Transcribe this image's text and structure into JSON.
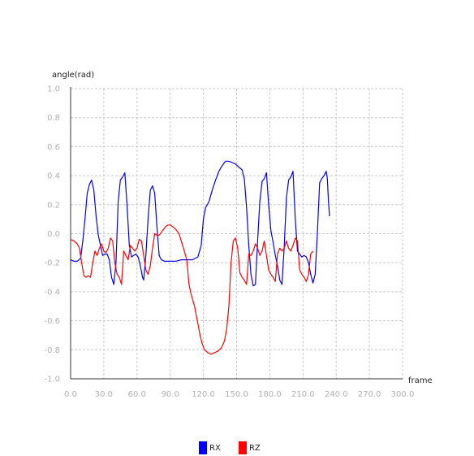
{
  "chart_data": {
    "type": "line",
    "xlabel": "frame",
    "ylabel": "angle(rad)",
    "xlim": [
      0,
      300
    ],
    "ylim": [
      -1.0,
      1.0
    ],
    "x_ticks": [
      "0.0",
      "30.0",
      "60.0",
      "90.0",
      "120.0",
      "150.0",
      "180.0",
      "210.0",
      "240.0",
      "270.0",
      "300.0"
    ],
    "y_ticks": [
      "1.0",
      "0.8",
      "0.6",
      "0.4",
      "0.2",
      "0.0",
      "-0.2",
      "-0.4",
      "-0.6",
      "-0.8",
      "-1.0"
    ],
    "grid": true,
    "legend_position": "bottom-center",
    "series": [
      {
        "name": "RX",
        "color": "#0000ff",
        "points": [
          [
            0,
            -0.18
          ],
          [
            3,
            -0.19
          ],
          [
            6,
            -0.19
          ],
          [
            9,
            -0.17
          ],
          [
            11,
            -0.05
          ],
          [
            13,
            0.1
          ],
          [
            15,
            0.28
          ],
          [
            17,
            0.34
          ],
          [
            19,
            0.37
          ],
          [
            21,
            0.3
          ],
          [
            23,
            0.12
          ],
          [
            25,
            -0.01
          ],
          [
            27,
            -0.08
          ],
          [
            29,
            -0.15
          ],
          [
            31,
            -0.14
          ],
          [
            33,
            -0.14
          ],
          [
            35,
            -0.18
          ],
          [
            37,
            -0.3
          ],
          [
            39,
            -0.35
          ],
          [
            41,
            -0.2
          ],
          [
            43,
            0.22
          ],
          [
            45,
            0.37
          ],
          [
            47,
            0.39
          ],
          [
            49,
            0.42
          ],
          [
            51,
            0.2
          ],
          [
            53,
            -0.08
          ],
          [
            55,
            -0.16
          ],
          [
            57,
            -0.15
          ],
          [
            59,
            -0.14
          ],
          [
            61,
            -0.16
          ],
          [
            63,
            -0.22
          ],
          [
            65,
            -0.3
          ],
          [
            66,
            -0.32
          ],
          [
            68,
            -0.15
          ],
          [
            70,
            0.1
          ],
          [
            72,
            0.3
          ],
          [
            74,
            0.33
          ],
          [
            76,
            0.28
          ],
          [
            78,
            0.05
          ],
          [
            80,
            -0.15
          ],
          [
            82,
            -0.18
          ],
          [
            85,
            -0.19
          ],
          [
            90,
            -0.19
          ],
          [
            95,
            -0.19
          ],
          [
            100,
            -0.18
          ],
          [
            105,
            -0.18
          ],
          [
            110,
            -0.18
          ],
          [
            115,
            -0.16
          ],
          [
            118,
            -0.08
          ],
          [
            120,
            0.1
          ],
          [
            122,
            0.18
          ],
          [
            125,
            0.22
          ],
          [
            128,
            0.3
          ],
          [
            131,
            0.37
          ],
          [
            134,
            0.43
          ],
          [
            137,
            0.47
          ],
          [
            140,
            0.5
          ],
          [
            143,
            0.5
          ],
          [
            146,
            0.49
          ],
          [
            149,
            0.48
          ],
          [
            152,
            0.46
          ],
          [
            155,
            0.44
          ],
          [
            157,
            0.38
          ],
          [
            159,
            0.18
          ],
          [
            161,
            -0.08
          ],
          [
            163,
            -0.28
          ],
          [
            165,
            -0.36
          ],
          [
            167,
            -0.35
          ],
          [
            169,
            -0.05
          ],
          [
            171,
            0.22
          ],
          [
            173,
            0.36
          ],
          [
            175,
            0.38
          ],
          [
            177,
            0.42
          ],
          [
            179,
            0.2
          ],
          [
            181,
            0.02
          ],
          [
            183,
            -0.06
          ],
          [
            185,
            -0.15
          ],
          [
            187,
            -0.22
          ],
          [
            189,
            -0.32
          ],
          [
            191,
            -0.35
          ],
          [
            193,
            -0.1
          ],
          [
            195,
            0.25
          ],
          [
            197,
            0.37
          ],
          [
            199,
            0.39
          ],
          [
            201,
            0.43
          ],
          [
            203,
            0.1
          ],
          [
            205,
            -0.12
          ],
          [
            207,
            -0.14
          ],
          [
            209,
            -0.16
          ],
          [
            211,
            -0.15
          ],
          [
            213,
            -0.16
          ],
          [
            215,
            -0.2
          ],
          [
            217,
            -0.28
          ],
          [
            219,
            -0.34
          ],
          [
            221,
            -0.28
          ],
          [
            223,
            0.0
          ],
          [
            225,
            0.35
          ],
          [
            227,
            0.38
          ],
          [
            229,
            0.4
          ],
          [
            231,
            0.43
          ],
          [
            232,
            0.38
          ],
          [
            233,
            0.22
          ],
          [
            234,
            0.12
          ]
        ]
      },
      {
        "name": "RZ",
        "color": "#ff0000",
        "points": [
          [
            0,
            -0.04
          ],
          [
            3,
            -0.05
          ],
          [
            6,
            -0.07
          ],
          [
            8,
            -0.1
          ],
          [
            10,
            -0.2
          ],
          [
            12,
            -0.29
          ],
          [
            14,
            -0.3
          ],
          [
            16,
            -0.29
          ],
          [
            18,
            -0.3
          ],
          [
            20,
            -0.2
          ],
          [
            22,
            -0.12
          ],
          [
            24,
            -0.15
          ],
          [
            26,
            -0.1
          ],
          [
            28,
            -0.07
          ],
          [
            30,
            -0.12
          ],
          [
            32,
            -0.13
          ],
          [
            34,
            -0.1
          ],
          [
            36,
            -0.03
          ],
          [
            38,
            -0.05
          ],
          [
            40,
            -0.2
          ],
          [
            42,
            -0.28
          ],
          [
            44,
            -0.3
          ],
          [
            46,
            -0.35
          ],
          [
            48,
            -0.12
          ],
          [
            50,
            -0.15
          ],
          [
            52,
            -0.18
          ],
          [
            54,
            -0.08
          ],
          [
            56,
            -0.1
          ],
          [
            58,
            -0.12
          ],
          [
            60,
            -0.1
          ],
          [
            62,
            -0.04
          ],
          [
            64,
            -0.05
          ],
          [
            66,
            -0.15
          ],
          [
            68,
            -0.25
          ],
          [
            70,
            -0.28
          ],
          [
            72,
            -0.22
          ],
          [
            74,
            -0.1
          ],
          [
            76,
            0.0
          ],
          [
            78,
            -0.01
          ],
          [
            80,
            -0.01
          ],
          [
            82,
            0.01
          ],
          [
            84,
            0.03
          ],
          [
            86,
            0.05
          ],
          [
            88,
            0.06
          ],
          [
            90,
            0.06
          ],
          [
            92,
            0.05
          ],
          [
            95,
            0.03
          ],
          [
            98,
            0.0
          ],
          [
            100,
            -0.05
          ],
          [
            102,
            -0.1
          ],
          [
            105,
            -0.18
          ],
          [
            107,
            -0.35
          ],
          [
            109,
            -0.42
          ],
          [
            112,
            -0.5
          ],
          [
            115,
            -0.62
          ],
          [
            117,
            -0.7
          ],
          [
            119,
            -0.76
          ],
          [
            121,
            -0.8
          ],
          [
            124,
            -0.82
          ],
          [
            127,
            -0.83
          ],
          [
            130,
            -0.82
          ],
          [
            133,
            -0.81
          ],
          [
            136,
            -0.79
          ],
          [
            139,
            -0.74
          ],
          [
            141,
            -0.66
          ],
          [
            143,
            -0.5
          ],
          [
            145,
            -0.2
          ],
          [
            147,
            -0.05
          ],
          [
            149,
            -0.03
          ],
          [
            151,
            -0.1
          ],
          [
            153,
            -0.27
          ],
          [
            155,
            -0.3
          ],
          [
            157,
            -0.32
          ],
          [
            159,
            -0.35
          ],
          [
            161,
            -0.14
          ],
          [
            163,
            -0.15
          ],
          [
            165,
            -0.12
          ],
          [
            167,
            -0.07
          ],
          [
            169,
            -0.1
          ],
          [
            171,
            -0.15
          ],
          [
            173,
            -0.12
          ],
          [
            175,
            -0.05
          ],
          [
            177,
            -0.15
          ],
          [
            179,
            -0.25
          ],
          [
            181,
            -0.28
          ],
          [
            183,
            -0.3
          ],
          [
            185,
            -0.33
          ],
          [
            187,
            -0.14
          ],
          [
            189,
            -0.1
          ],
          [
            191,
            -0.12
          ],
          [
            193,
            -0.1
          ],
          [
            195,
            -0.05
          ],
          [
            197,
            -0.1
          ],
          [
            199,
            -0.12
          ],
          [
            201,
            -0.08
          ],
          [
            203,
            -0.03
          ],
          [
            205,
            -0.05
          ],
          [
            207,
            -0.25
          ],
          [
            209,
            -0.28
          ],
          [
            211,
            -0.3
          ],
          [
            213,
            -0.33
          ],
          [
            215,
            -0.28
          ],
          [
            217,
            -0.14
          ],
          [
            219,
            -0.12
          ]
        ]
      }
    ]
  }
}
